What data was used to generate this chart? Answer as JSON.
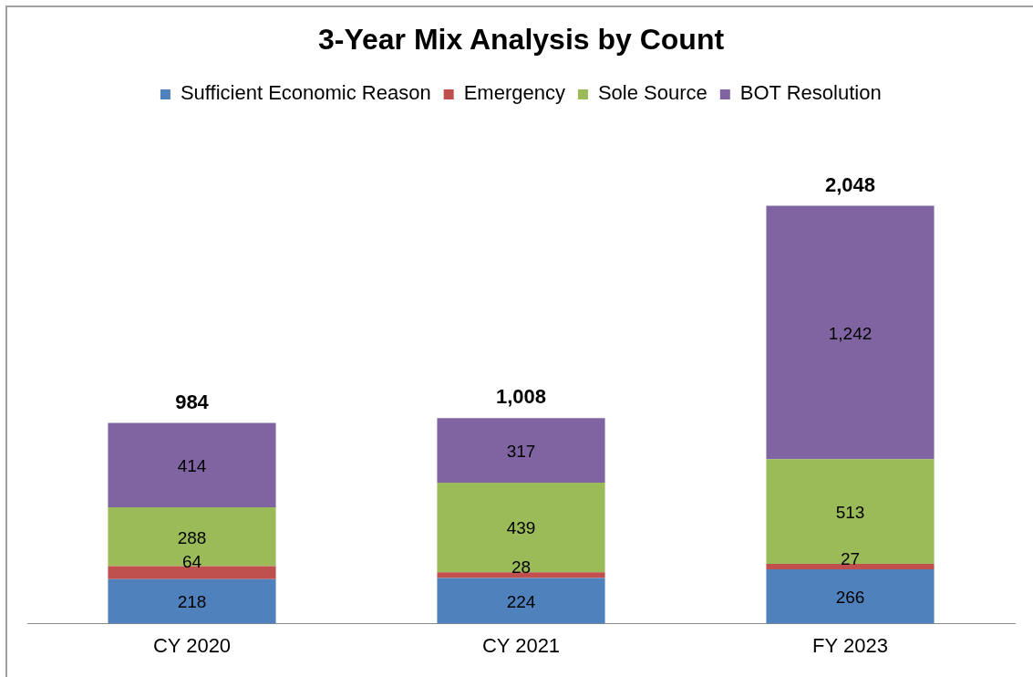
{
  "chart_data": {
    "type": "bar",
    "title": "3-Year Mix Analysis by Count",
    "categories": [
      "CY 2020",
      "CY 2021",
      "FY 2023"
    ],
    "stacked": true,
    "legend": "top",
    "grid": false,
    "tick_labels": "x",
    "series": [
      {
        "name": "Sufficient Economic Reason",
        "color": "#4f81bd",
        "values": [
          218,
          224,
          266
        ],
        "value_labels": [
          "218",
          "224",
          "266"
        ]
      },
      {
        "name": "Emergency",
        "color": "#c0504d",
        "values": [
          64,
          28,
          27
        ],
        "value_labels": [
          "64",
          "28",
          "27"
        ]
      },
      {
        "name": "Sole Source",
        "color": "#9bbb59",
        "values": [
          288,
          439,
          513
        ],
        "value_labels": [
          "288",
          "439",
          "513"
        ]
      },
      {
        "name": "BOT Resolution",
        "color": "#8064a2",
        "values": [
          414,
          317,
          1242
        ],
        "value_labels": [
          "414",
          "317",
          "1,242"
        ]
      }
    ],
    "totals": [
      "984",
      "1,008",
      "2,048"
    ]
  }
}
